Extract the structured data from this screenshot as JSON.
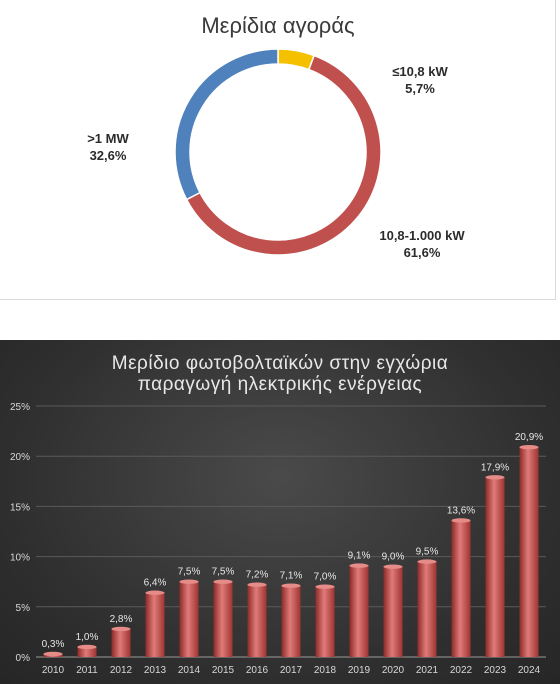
{
  "colors": {
    "slice_small": "#f5c000",
    "slice_medium": "#c0504d",
    "slice_large": "#4f81bd",
    "bar_fill": "#c0504d",
    "bar_dark": "#8c2a28",
    "bar_light": "#e07b78",
    "dark_bg": "#333333"
  },
  "chart_data": [
    {
      "type": "pie",
      "title": "Μερίδια αγοράς",
      "slices": [
        {
          "label": "≤10,8 kW",
          "value": 5.7,
          "value_label": "5,7%",
          "color": "#f5c000"
        },
        {
          "label": "10,8-1.000 kW",
          "value": 61.6,
          "value_label": "61,6%",
          "color": "#c0504d"
        },
        {
          "label": ">1 MW",
          "value": 32.6,
          "value_label": "32,6%",
          "color": "#4f81bd"
        }
      ]
    },
    {
      "type": "bar",
      "title_lines": [
        "Μερίδιο  φωτοβολταϊκών στην εγχώρια",
        "παραγωγή ηλεκτρικής ενέργειας"
      ],
      "categories": [
        "2010",
        "2011",
        "2012",
        "2013",
        "2014",
        "2015",
        "2016",
        "2017",
        "2018",
        "2019",
        "2020",
        "2021",
        "2022",
        "2023",
        "2024"
      ],
      "values": [
        0.3,
        1.0,
        2.8,
        6.4,
        7.5,
        7.5,
        7.2,
        7.1,
        7.0,
        9.1,
        9.0,
        9.5,
        13.6,
        17.9,
        20.9
      ],
      "value_labels": [
        "0,3%",
        "1,0%",
        "2,8%",
        "6,4%",
        "7,5%",
        "7,5%",
        "7,2%",
        "7,1%",
        "7,0%",
        "9,1%",
        "9,0%",
        "9,5%",
        "13,6%",
        "17,9%",
        "20,9%"
      ],
      "ylim": [
        0,
        25
      ],
      "yticks": [
        0,
        5,
        10,
        15,
        20,
        25
      ],
      "ytick_labels": [
        "0%",
        "5%",
        "10%",
        "15%",
        "20%",
        "25%"
      ],
      "grid": true
    }
  ]
}
